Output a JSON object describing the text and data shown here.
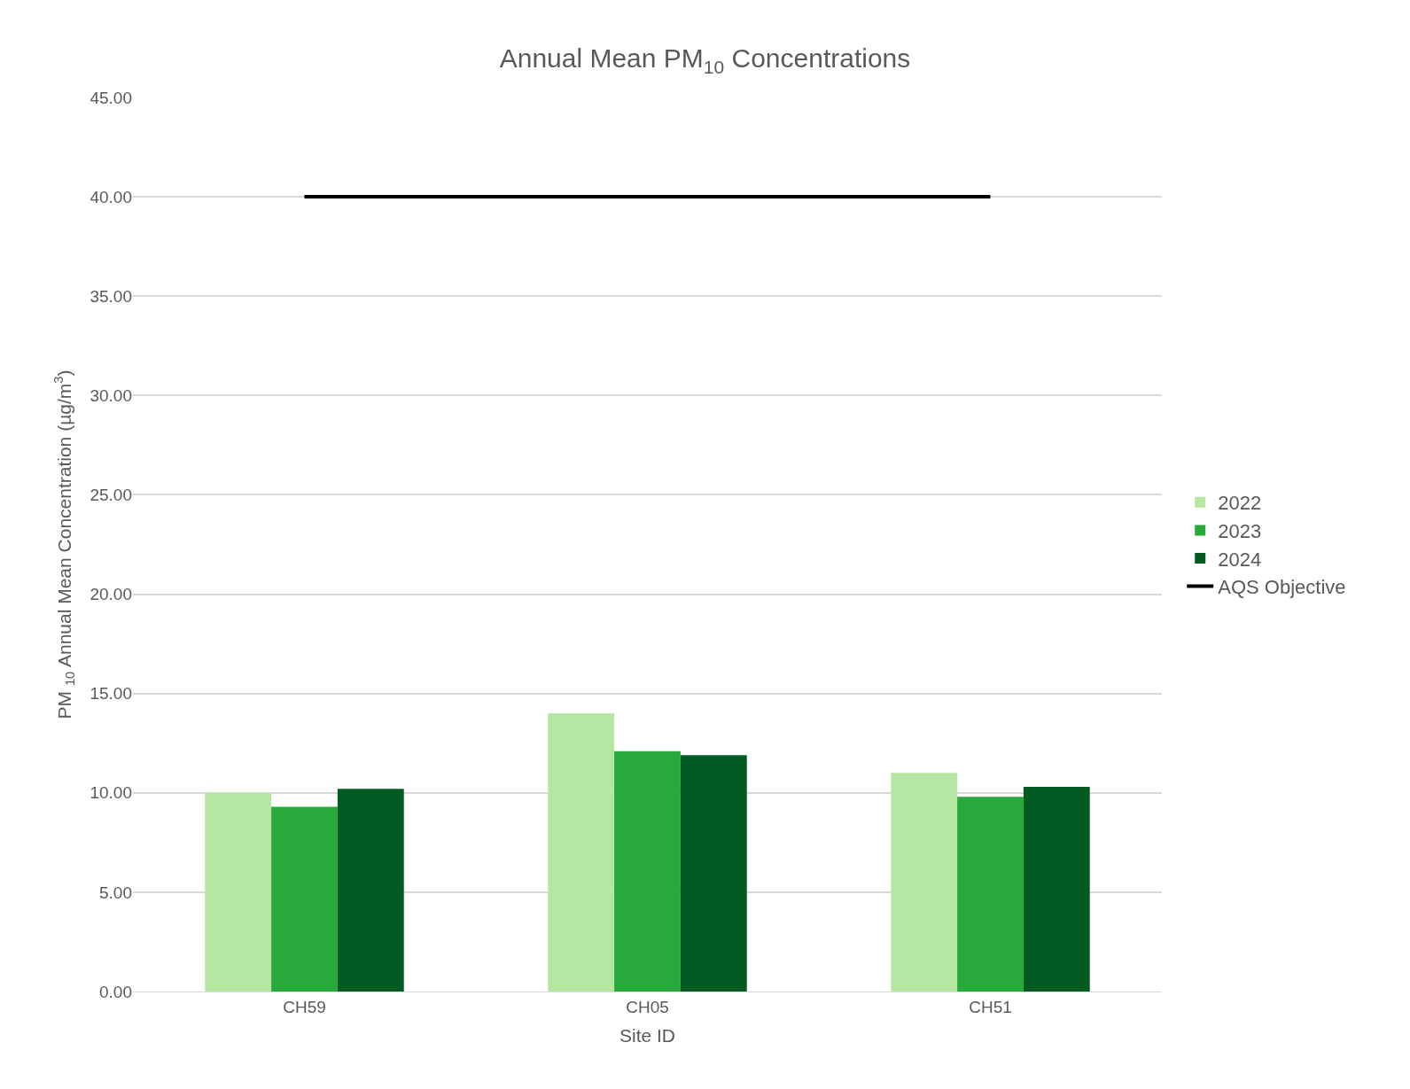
{
  "chart_data": {
    "type": "bar",
    "title": "Annual Mean PM$_{10}$ Concentrations",
    "xlabel": "Site ID",
    "ylabel": "PM $_{10}$ Annual Mean Concentration (µg/m$^{3}$)",
    "categories": [
      "CH59",
      "CH05",
      "CH51"
    ],
    "series": [
      {
        "name": "2022",
        "color": "#b5e6a2",
        "values": [
          10.0,
          14.0,
          11.0
        ]
      },
      {
        "name": "2023",
        "color": "#28a93b",
        "values": [
          9.3,
          12.1,
          9.8
        ]
      },
      {
        "name": "2024",
        "color": "#035a22",
        "values": [
          10.2,
          11.9,
          10.3
        ]
      },
      {
        "name": "AQS Objective",
        "type": "line",
        "color": "#000000",
        "values": [
          40,
          40,
          40
        ]
      }
    ],
    "ylim": [
      0,
      45
    ],
    "yticks": [
      {
        "value": 0,
        "label": "0.00"
      },
      {
        "value": 5,
        "label": "5.00"
      },
      {
        "value": 10,
        "label": "10.00"
      },
      {
        "value": 15,
        "label": "15.00"
      },
      {
        "value": 20,
        "label": "20.00"
      },
      {
        "value": 25,
        "label": "25.00"
      },
      {
        "value": 30,
        "label": "30.00"
      },
      {
        "value": 35,
        "label": "35.00"
      },
      {
        "value": 40,
        "label": "40.00"
      },
      {
        "value": 45,
        "label": "45.00"
      }
    ],
    "grid": "y",
    "legend": "right"
  }
}
